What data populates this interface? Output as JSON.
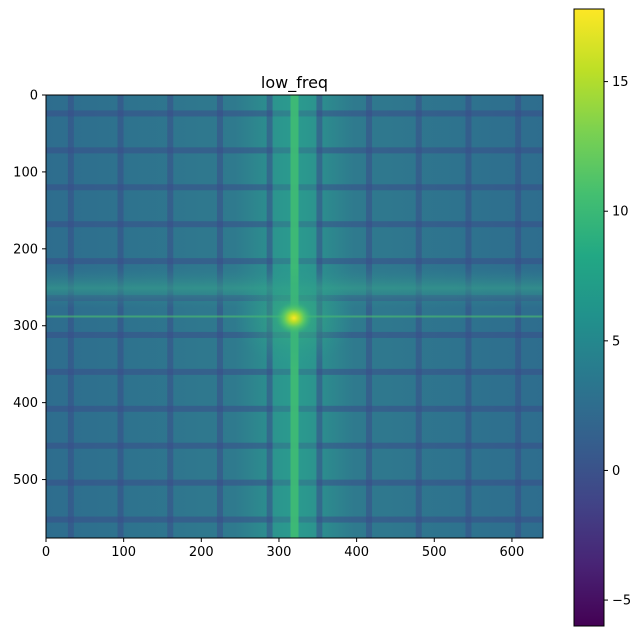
{
  "chart_data": {
    "type": "heatmap",
    "title": "low_freq",
    "xlabel": "",
    "ylabel": "",
    "xlim": [
      0,
      640
    ],
    "ylim": [
      576,
      0
    ],
    "x_ticks": [
      0,
      100,
      200,
      300,
      400,
      500,
      600
    ],
    "y_ticks": [
      0,
      100,
      200,
      300,
      400,
      500
    ],
    "colormap": "viridis",
    "colorbar": {
      "range": [
        -6,
        17.8
      ],
      "ticks": [
        -5,
        0,
        5,
        10,
        15
      ]
    },
    "image_content": {
      "description_values": {
        "center": [
          320,
          288
        ],
        "peak_value": 17.8,
        "background_value": 3,
        "grid_period_x": 64,
        "grid_period_y": 48,
        "grid_line_value": 1,
        "vertical_band_x": 320,
        "vertical_band_value": 8.5,
        "horizontal_band_y": 288,
        "horizontal_band_value": 5.5
      }
    },
    "grid": false
  }
}
